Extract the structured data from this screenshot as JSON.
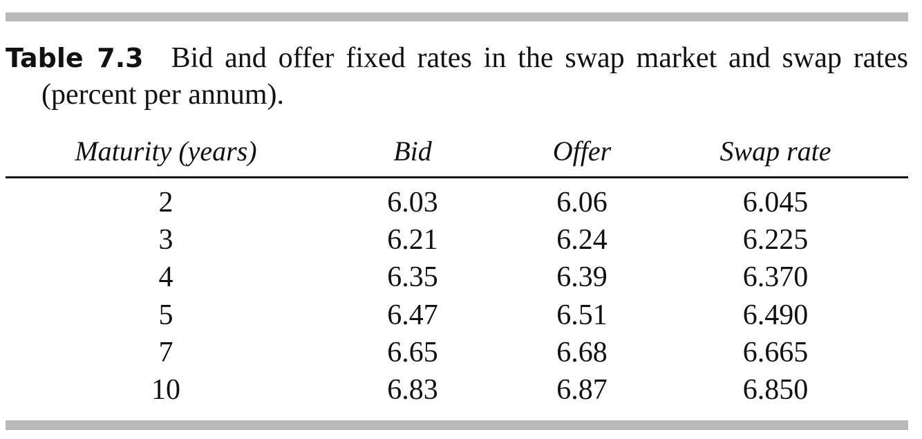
{
  "caption": {
    "label": "Table 7.3",
    "text": "Bid and offer fixed rates in the swap market and swap rates (percent per annum)."
  },
  "table": {
    "headers": [
      "Maturity (years)",
      "Bid",
      "Offer",
      "Swap rate"
    ],
    "rows": [
      [
        "2",
        "6.03",
        "6.06",
        "6.045"
      ],
      [
        "3",
        "6.21",
        "6.24",
        "6.225"
      ],
      [
        "4",
        "6.35",
        "6.39",
        "6.370"
      ],
      [
        "5",
        "6.47",
        "6.51",
        "6.490"
      ],
      [
        "7",
        "6.65",
        "6.68",
        "6.665"
      ],
      [
        "10",
        "6.83",
        "6.87",
        "6.850"
      ]
    ]
  }
}
